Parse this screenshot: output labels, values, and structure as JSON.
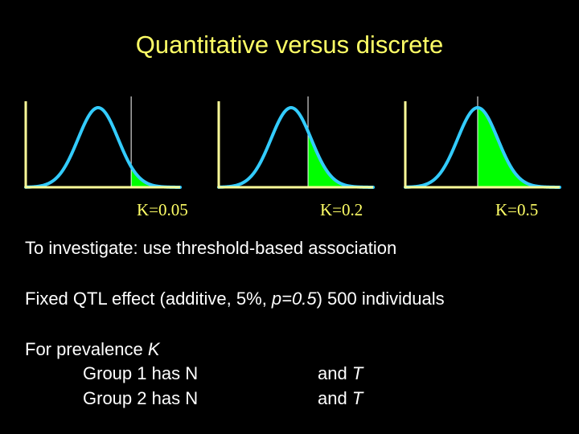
{
  "title": "Quantitative versus discrete",
  "colors": {
    "background": "#000000",
    "title": "#ffff66",
    "curve": "#33ccff",
    "tail_fill": "#00ff00",
    "axis": "#ffff99",
    "threshold_line": "#ffffff",
    "text": "#ffffff",
    "k_label": "#ffff66"
  },
  "distributions": [
    {
      "label": "K=0.05",
      "prevalence": 0.05
    },
    {
      "label": "K=0.2",
      "prevalence": 0.2
    },
    {
      "label": "K=0.5",
      "prevalence": 0.5
    }
  ],
  "text": {
    "line1": "To investigate: use threshold-based association",
    "line2_pre": "Fixed QTL effect (additive, 5%, ",
    "line2_p": "p=0.5",
    "line2_post": ") 500 individuals",
    "line3_pre": "For prevalence ",
    "line3_k": "K",
    "group1_pre": "Group 1 has N",
    "group1_and": "and ",
    "group1_t": "T",
    "group2_pre": "Group 2 has N",
    "group2_and": "and ",
    "group2_t": "T"
  }
}
